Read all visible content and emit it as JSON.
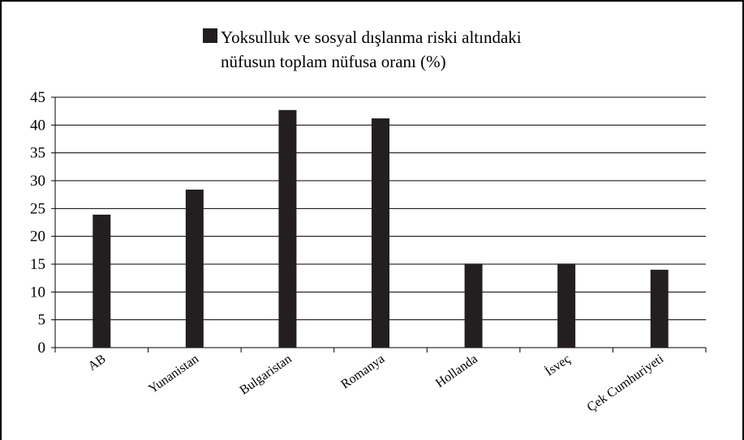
{
  "chart_data": {
    "type": "bar",
    "categories": [
      "AB",
      "Yunanistan",
      "Bulgaristan",
      "Romanya",
      "Hollanda",
      "İsveç",
      "Çek Cumhuriyeti"
    ],
    "series": [
      {
        "name": "Yoksulluk ve sosyal dışlanma riski altındaki nüfusun toplam nüfusa oranı (%)",
        "color": "#231f20",
        "values": [
          23.9,
          28.4,
          42.7,
          41.2,
          15.1,
          15.1,
          14.0
        ]
      }
    ],
    "ylim": [
      0,
      45
    ],
    "yticks": [
      0,
      5,
      10,
      15,
      20,
      25,
      30,
      35,
      40,
      45
    ],
    "grid": true,
    "legend": "top"
  }
}
